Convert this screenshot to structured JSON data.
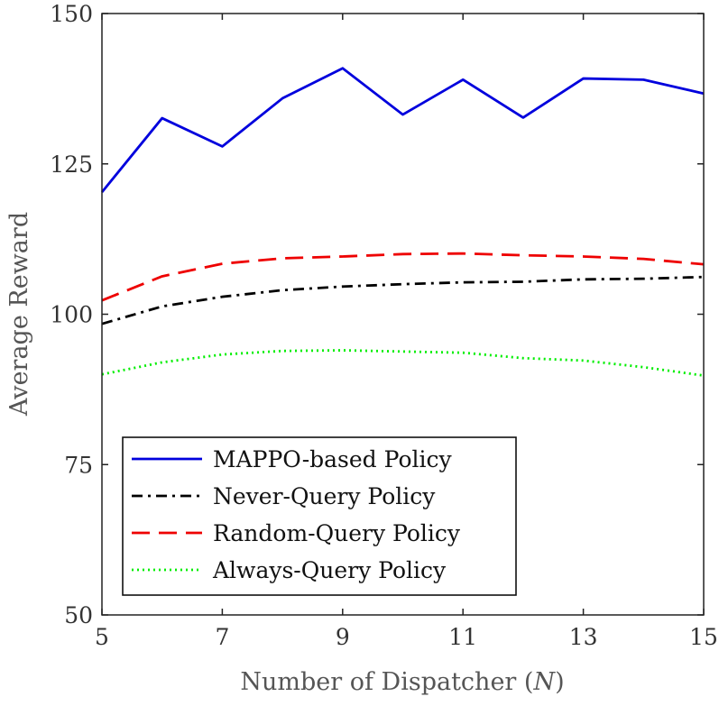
{
  "chart_data": {
    "type": "line",
    "title": "",
    "xlabel": "Number of Dispatcher (",
    "xlabel_var": "N",
    "xlabel_close": ")",
    "ylabel": "Average Reward",
    "xlim": [
      5,
      15
    ],
    "ylim": [
      50,
      150
    ],
    "xticks": [
      5,
      7,
      9,
      11,
      13,
      15
    ],
    "yticks": [
      50,
      75,
      100,
      125,
      150
    ],
    "grid": false,
    "legend_position": "bottom-left",
    "x": [
      5,
      6,
      7,
      8,
      9,
      10,
      11,
      12,
      13,
      14,
      15
    ],
    "series": [
      {
        "name": "MAPPO-based Policy",
        "color": "#0000dd",
        "style": "solid",
        "values": [
          120.3,
          132.6,
          127.9,
          135.9,
          140.9,
          133.2,
          139.0,
          132.7,
          139.2,
          139.0,
          136.7
        ]
      },
      {
        "name": "Never-Query Policy",
        "color": "#000000",
        "style": "dashdot",
        "values": [
          98.4,
          101.3,
          102.9,
          104.0,
          104.6,
          105.0,
          105.3,
          105.4,
          105.8,
          105.9,
          106.2
        ]
      },
      {
        "name": "Random-Query Policy",
        "color": "#ee0000",
        "style": "dashed",
        "values": [
          102.3,
          106.3,
          108.4,
          109.3,
          109.6,
          110.0,
          110.1,
          109.8,
          109.6,
          109.2,
          108.3
        ]
      },
      {
        "name": "Always-Query Policy",
        "color": "#00ee00",
        "style": "dotted",
        "values": [
          90.0,
          92.0,
          93.3,
          93.9,
          94.0,
          93.8,
          93.6,
          92.7,
          92.3,
          91.2,
          89.8
        ]
      }
    ]
  }
}
